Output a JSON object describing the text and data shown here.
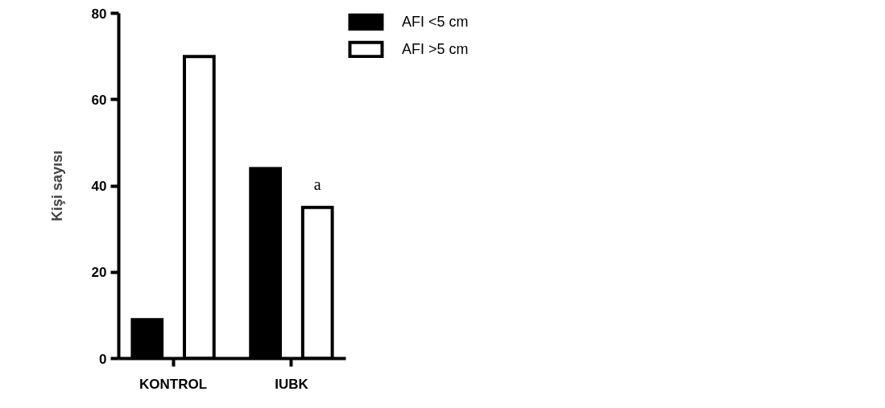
{
  "chart_data": {
    "type": "bar",
    "ylabel": "Kişi sayısı",
    "categories": [
      "KONTROL",
      "IUBK"
    ],
    "series": [
      {
        "name": "AFI <5 cm",
        "color": "#000000",
        "values": [
          9,
          44
        ]
      },
      {
        "name": "AFI >5 cm",
        "color": "#ffffff",
        "values": [
          70,
          35
        ]
      }
    ],
    "ylim": [
      0,
      80
    ],
    "yticks": [
      0,
      20,
      40,
      60,
      80
    ],
    "grid": false,
    "legend": "top right",
    "annotations": [
      "a"
    ]
  }
}
